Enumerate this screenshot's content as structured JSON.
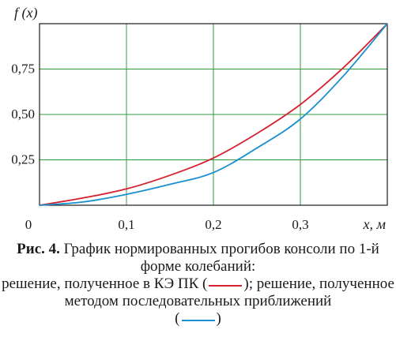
{
  "chart_data": {
    "type": "line",
    "ylabel": "f (x)",
    "xlabel": "x, м",
    "xlim": [
      0,
      0.4
    ],
    "ylim": [
      0,
      1
    ],
    "x_ticks": [
      "0",
      "0,1",
      "0,2",
      "0,3"
    ],
    "y_ticks": [
      "0,25",
      "0,50",
      "0,75"
    ],
    "grid": true,
    "series": [
      {
        "color": "#d7202e",
        "x": [
          0,
          0.05,
          0.1,
          0.15,
          0.2,
          0.25,
          0.3,
          0.35,
          0.4
        ],
        "y": [
          0,
          0.04,
          0.09,
          0.165,
          0.26,
          0.395,
          0.555,
          0.76,
          1
        ]
      },
      {
        "color": "#1a8fd0",
        "x": [
          0,
          0.05,
          0.1,
          0.15,
          0.2,
          0.25,
          0.3,
          0.35,
          0.4
        ],
        "y": [
          0,
          0.018,
          0.06,
          0.115,
          0.18,
          0.315,
          0.475,
          0.715,
          1
        ]
      }
    ]
  },
  "caption": {
    "label": "Рис. 4.",
    "text1": " График нормированных прогибов консоли по 1-й форме колебаний:",
    "text2": "решение, полученное в КЭ ПК (",
    "text3": "); решение, полученное методом последовательных приближений",
    "text4a": "(",
    "text4b": ")",
    "red_color": "#d7202e",
    "blue_color": "#1a8fd0"
  }
}
